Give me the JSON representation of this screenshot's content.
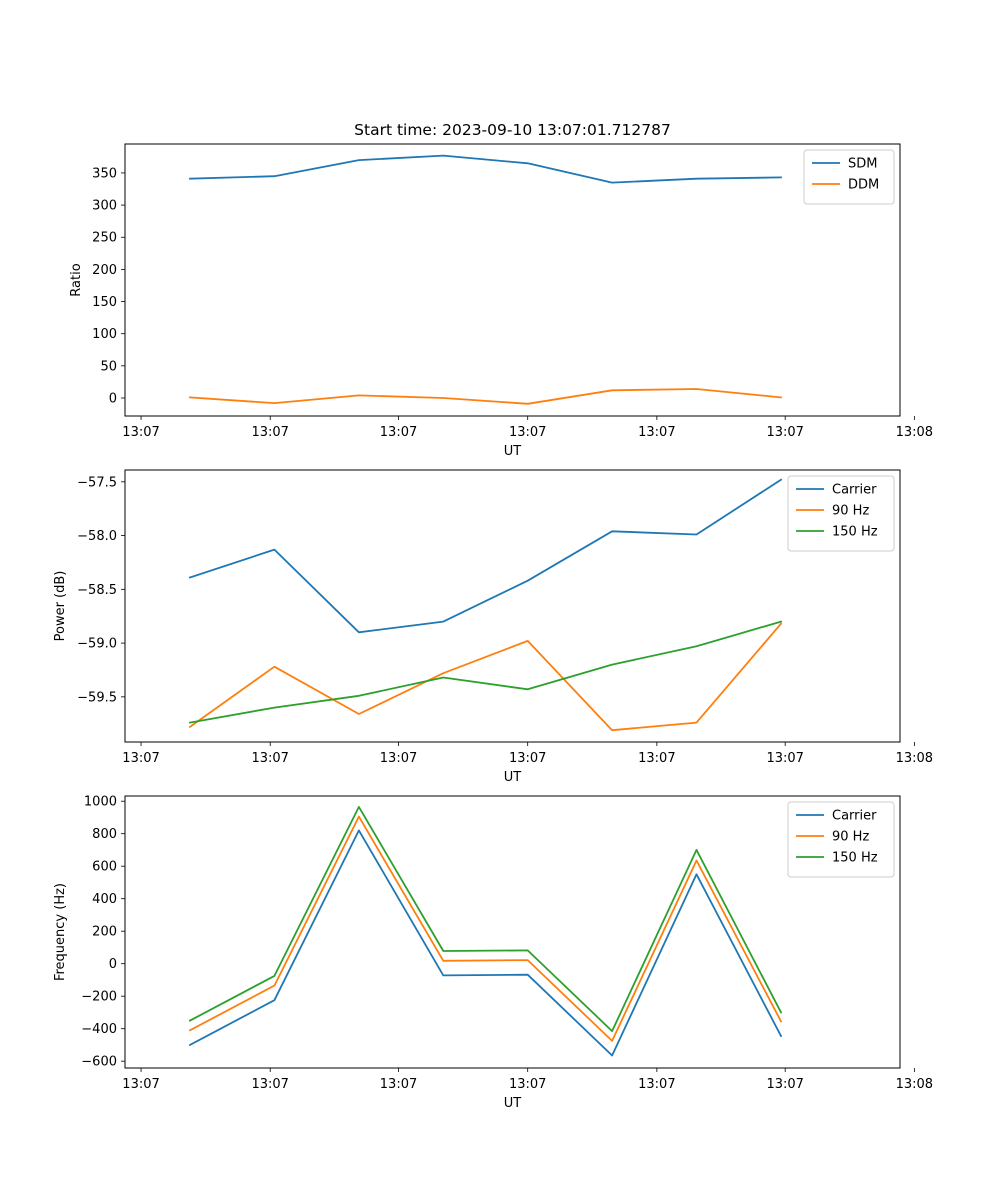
{
  "chart_data": [
    {
      "type": "line",
      "title": "Start time: 2023-09-10 13:07:01.712787",
      "xlabel": "UT",
      "ylabel": "Ratio",
      "x_tick_labels": [
        "13:07",
        "13:07",
        "13:07",
        "13:07",
        "13:07",
        "13:07",
        "13:08"
      ],
      "x": [
        1,
        2,
        3,
        4,
        5,
        6,
        7,
        8
      ],
      "xlim": [
        0.23,
        9.41
      ],
      "x_ticks": [
        0.42,
        1.95,
        3.47,
        5.0,
        6.53,
        8.05,
        9.58
      ],
      "ylim": [
        -28,
        395
      ],
      "y_ticks": [
        0,
        50,
        100,
        150,
        200,
        250,
        300,
        350
      ],
      "y_tick_labels": [
        "0",
        "50",
        "100",
        "150",
        "200",
        "250",
        "300",
        "350"
      ],
      "legend_position": "top-right",
      "series": [
        {
          "name": "SDM",
          "color": "#1f77b4",
          "values": [
            341,
            345,
            370,
            377,
            365,
            335,
            341,
            343
          ]
        },
        {
          "name": "DDM",
          "color": "#ff7f0e",
          "values": [
            1,
            -8,
            4,
            0,
            -9,
            12,
            14,
            1
          ]
        }
      ]
    },
    {
      "type": "line",
      "title": "",
      "xlabel": "UT",
      "ylabel": "Power (dB)",
      "x_tick_labels": [
        "13:07",
        "13:07",
        "13:07",
        "13:07",
        "13:07",
        "13:07",
        "13:08"
      ],
      "x": [
        1,
        2,
        3,
        4,
        5,
        6,
        7,
        8
      ],
      "xlim": [
        0.23,
        9.41
      ],
      "x_ticks": [
        0.42,
        1.95,
        3.47,
        5.0,
        6.53,
        8.05,
        9.58
      ],
      "ylim": [
        -59.92,
        -57.39
      ],
      "y_ticks": [
        -59.5,
        -59.0,
        -58.5,
        -58.0,
        -57.5
      ],
      "y_tick_labels": [
        "−59.5",
        "−59.0",
        "−58.5",
        "−58.0",
        "−57.5"
      ],
      "legend_position": "top-right",
      "series": [
        {
          "name": "Carrier",
          "color": "#1f77b4",
          "values": [
            -58.39,
            -58.13,
            -58.9,
            -58.8,
            -58.42,
            -57.96,
            -57.99,
            -57.48
          ]
        },
        {
          "name": "90 Hz",
          "color": "#ff7f0e",
          "values": [
            -59.78,
            -59.22,
            -59.66,
            -59.28,
            -58.98,
            -59.81,
            -59.74,
            -58.82
          ]
        },
        {
          "name": "150 Hz",
          "color": "#2ca02c",
          "values": [
            -59.74,
            -59.6,
            -59.49,
            -59.32,
            -59.43,
            -59.2,
            -59.03,
            -58.8
          ]
        }
      ]
    },
    {
      "type": "line",
      "title": "",
      "xlabel": "UT",
      "ylabel": "Frequency (Hz)",
      "x_tick_labels": [
        "13:07",
        "13:07",
        "13:07",
        "13:07",
        "13:07",
        "13:07",
        "13:08"
      ],
      "x": [
        1,
        2,
        3,
        4,
        5,
        6,
        7,
        8
      ],
      "xlim": [
        0.23,
        9.41
      ],
      "x_ticks": [
        0.42,
        1.95,
        3.47,
        5.0,
        6.53,
        8.05,
        9.58
      ],
      "ylim": [
        -642,
        1032
      ],
      "y_ticks": [
        -600,
        -400,
        -200,
        0,
        200,
        400,
        600,
        800,
        1000
      ],
      "y_tick_labels": [
        "−600",
        "−400",
        "−200",
        "0",
        "200",
        "400",
        "600",
        "800",
        "1000"
      ],
      "legend_position": "top-right",
      "series": [
        {
          "name": "Carrier",
          "color": "#1f77b4",
          "values": [
            -500,
            -225,
            820,
            -72,
            -68,
            -565,
            550,
            -445
          ]
        },
        {
          "name": "90 Hz",
          "color": "#ff7f0e",
          "values": [
            -410,
            -135,
            905,
            18,
            22,
            -475,
            635,
            -355
          ]
        },
        {
          "name": "150 Hz",
          "color": "#2ca02c",
          "values": [
            -350,
            -75,
            965,
            78,
            82,
            -415,
            700,
            -300
          ]
        }
      ]
    }
  ]
}
